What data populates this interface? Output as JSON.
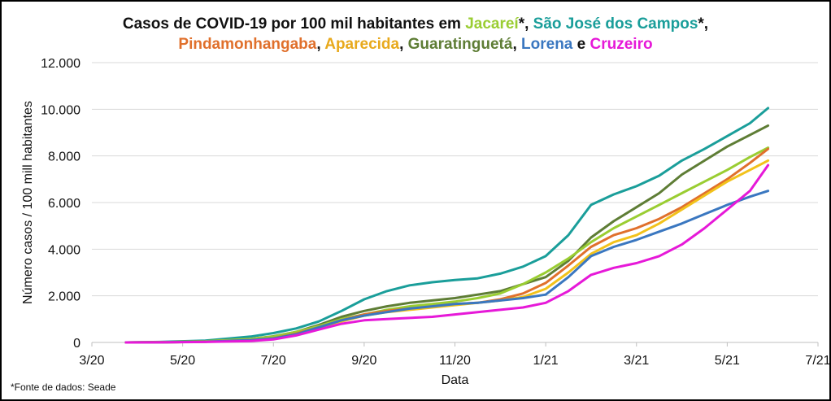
{
  "title": {
    "line1": [
      {
        "text": "Casos de COVID-19 por 100 mil habitantes em ",
        "color": "#111111"
      },
      {
        "text": "Jacareí",
        "color": "#9ACD32"
      },
      {
        "text": "*, ",
        "color": "#111111"
      },
      {
        "text": "São José dos Campos",
        "color": "#1A9E9A"
      },
      {
        "text": "*,",
        "color": "#111111"
      }
    ],
    "line2": [
      {
        "text": "Pindamonhangaba",
        "color": "#E0702C"
      },
      {
        "text": ", ",
        "color": "#111111"
      },
      {
        "text": "Aparecida",
        "color": "#E8A91C"
      },
      {
        "text": ", ",
        "color": "#111111"
      },
      {
        "text": "Guaratinguetá",
        "color": "#5E7D35"
      },
      {
        "text": ", ",
        "color": "#111111"
      },
      {
        "text": "Lorena",
        "color": "#3A77C0"
      },
      {
        "text": " e ",
        "color": "#111111"
      },
      {
        "text": "Cruzeiro",
        "color": "#E619D8"
      }
    ]
  },
  "source_note": "*Fonte de dados: Seade",
  "chart_data": {
    "type": "line",
    "xlabel": "Data",
    "ylabel": "Número casos / 100 mill habitantes",
    "x_ticks": [
      "3/20",
      "5/20",
      "7/20",
      "9/20",
      "11/20",
      "1/21",
      "3/21",
      "5/21",
      "7/21"
    ],
    "xlim": [
      "3/20",
      "7/21"
    ],
    "ylim": [
      0,
      12000
    ],
    "y_ticks": [
      "0",
      "2.000",
      "4.000",
      "6.000",
      "8.000",
      "10.000",
      "12.000"
    ],
    "y_tick_values": [
      0,
      2000,
      4000,
      6000,
      8000,
      10000,
      12000
    ],
    "grid": "horizontal",
    "x_unit": "months since 3/20",
    "series": [
      {
        "name": "São José dos Campos",
        "color": "#1A9E9A",
        "x": [
          0.75,
          1.5,
          2.5,
          3.5,
          4,
          4.5,
          5,
          5.5,
          6,
          6.5,
          7,
          7.5,
          8,
          8.5,
          9,
          9.5,
          10,
          10.5,
          11,
          11.5,
          12,
          12.5,
          13,
          13.5,
          14,
          14.5,
          14.9
        ],
        "y": [
          0,
          20,
          80,
          250,
          400,
          600,
          900,
          1350,
          1850,
          2200,
          2450,
          2580,
          2680,
          2750,
          2950,
          3250,
          3700,
          4600,
          5900,
          6350,
          6700,
          7150,
          7800,
          8300,
          8850,
          9400,
          10050
        ]
      },
      {
        "name": "Guaratinguetá",
        "color": "#5E7D35",
        "x": [
          0.75,
          1.5,
          2.5,
          3.5,
          4,
          4.5,
          5,
          5.5,
          6,
          6.5,
          7,
          7.5,
          8,
          8.5,
          9,
          9.5,
          10,
          10.5,
          11,
          11.5,
          12,
          12.5,
          13,
          13.5,
          14,
          14.5,
          14.9
        ],
        "y": [
          0,
          10,
          50,
          150,
          260,
          450,
          750,
          1100,
          1350,
          1550,
          1700,
          1800,
          1900,
          2050,
          2200,
          2500,
          2800,
          3500,
          4500,
          5200,
          5800,
          6400,
          7200,
          7800,
          8400,
          8900,
          9300
        ]
      },
      {
        "name": "Jacareí",
        "color": "#9ACD32",
        "x": [
          0.75,
          1.5,
          2.5,
          3.5,
          4,
          4.5,
          5,
          5.5,
          6,
          6.5,
          7,
          7.5,
          8,
          8.5,
          9,
          9.5,
          10,
          10.5,
          11,
          11.5,
          12,
          12.5,
          13,
          13.5,
          14,
          14.5,
          14.9
        ],
        "y": [
          0,
          10,
          50,
          150,
          250,
          450,
          700,
          1000,
          1200,
          1400,
          1550,
          1650,
          1750,
          1900,
          2100,
          2500,
          3000,
          3600,
          4300,
          4900,
          5400,
          5900,
          6400,
          6900,
          7400,
          7950,
          8350
        ]
      },
      {
        "name": "Pindamonhangaba",
        "color": "#E0702C",
        "x": [
          0.75,
          1.5,
          2.5,
          3.5,
          4,
          4.5,
          5,
          5.5,
          6,
          6.5,
          7,
          7.5,
          8,
          8.5,
          9,
          9.5,
          10,
          10.5,
          11,
          11.5,
          12,
          12.5,
          13,
          13.5,
          14,
          14.5,
          14.9
        ],
        "y": [
          0,
          5,
          30,
          100,
          180,
          380,
          650,
          950,
          1200,
          1350,
          1450,
          1550,
          1650,
          1700,
          1850,
          2100,
          2550,
          3300,
          4100,
          4600,
          4900,
          5300,
          5800,
          6400,
          7000,
          7700,
          8300
        ]
      },
      {
        "name": "Aparecida",
        "color": "#F2C21B",
        "x": [
          0.75,
          1.5,
          2.5,
          3.5,
          4,
          4.5,
          5,
          5.5,
          6,
          6.5,
          7,
          7.5,
          8,
          8.5,
          9,
          9.5,
          10,
          10.5,
          11,
          11.5,
          12,
          12.5,
          13,
          13.5,
          14,
          14.5,
          14.9
        ],
        "y": [
          0,
          5,
          30,
          100,
          170,
          350,
          600,
          900,
          1150,
          1300,
          1400,
          1500,
          1600,
          1700,
          1800,
          1950,
          2300,
          3000,
          3800,
          4300,
          4600,
          5100,
          5700,
          6300,
          6900,
          7400,
          7800
        ]
      },
      {
        "name": "Lorena",
        "color": "#3A77C0",
        "x": [
          0.75,
          1.5,
          2.5,
          3.5,
          4,
          4.5,
          5,
          5.5,
          6,
          6.5,
          7,
          7.5,
          8,
          8.5,
          9,
          9.5,
          10,
          10.5,
          11,
          11.5,
          12,
          12.5,
          13,
          13.5,
          14,
          14.5,
          14.9
        ],
        "y": [
          0,
          5,
          30,
          100,
          170,
          350,
          650,
          950,
          1150,
          1300,
          1450,
          1550,
          1650,
          1700,
          1800,
          1900,
          2050,
          2800,
          3700,
          4100,
          4400,
          4750,
          5100,
          5500,
          5900,
          6250,
          6500
        ]
      },
      {
        "name": "Cruzeiro",
        "color": "#E619D8",
        "x": [
          0.75,
          1.5,
          2.5,
          3.5,
          4,
          4.5,
          5,
          5.5,
          6,
          6.5,
          7,
          7.5,
          8,
          8.5,
          9,
          9.5,
          10,
          10.5,
          11,
          11.5,
          12,
          12.5,
          13,
          13.5,
          14,
          14.5,
          14.9
        ],
        "y": [
          0,
          5,
          20,
          60,
          130,
          300,
          550,
          800,
          950,
          1000,
          1050,
          1100,
          1200,
          1300,
          1400,
          1500,
          1700,
          2200,
          2900,
          3200,
          3400,
          3700,
          4200,
          4900,
          5700,
          6500,
          7600
        ]
      }
    ]
  }
}
